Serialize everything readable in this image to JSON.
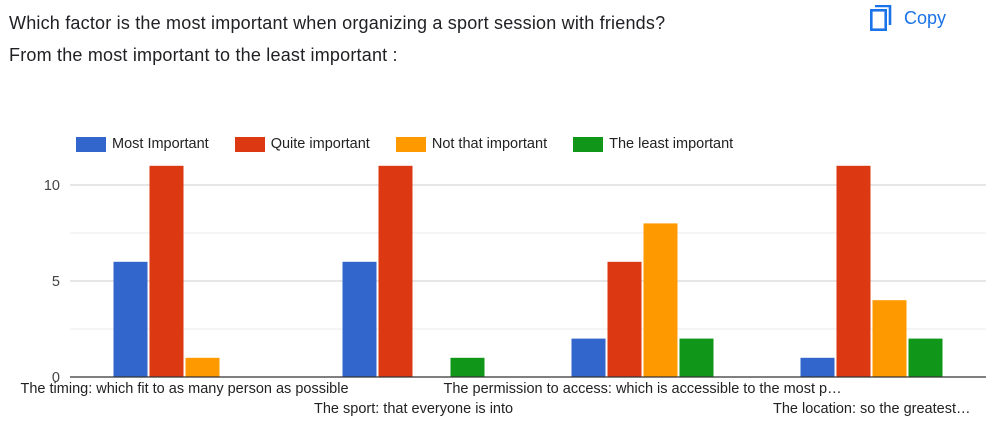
{
  "question": {
    "line1": "Which factor is the most important when organizing a sport session with friends?",
    "line2": "From the most important to the least important :"
  },
  "copy_button": {
    "label": "Copy",
    "icon": "copy-icon"
  },
  "colors": {
    "series": [
      "#3366cc",
      "#dc3912",
      "#ff9900",
      "#109618"
    ],
    "copy": "#1a73e8",
    "grid": "#cccccc",
    "minor_grid": "#ebebeb",
    "axis": "#333333"
  },
  "chart_data": {
    "type": "bar",
    "title": "",
    "xlabel": "",
    "ylabel": "",
    "ylim": [
      0,
      12
    ],
    "yticks": [
      0,
      5,
      10
    ],
    "legend_position": "top",
    "categories": [
      "The timing: which fit to as many person as possible",
      "The sport: that everyone is into",
      "The permission to access: which is accessible to the most p…",
      "The location: so the greatest…"
    ],
    "series": [
      {
        "name": "Most Important",
        "values": [
          6,
          6,
          2,
          1
        ]
      },
      {
        "name": "Quite important",
        "values": [
          11,
          11,
          6,
          11
        ]
      },
      {
        "name": "Not that important",
        "values": [
          1,
          0,
          8,
          4
        ]
      },
      {
        "name": "The least important",
        "values": [
          0,
          1,
          2,
          2
        ]
      }
    ]
  }
}
